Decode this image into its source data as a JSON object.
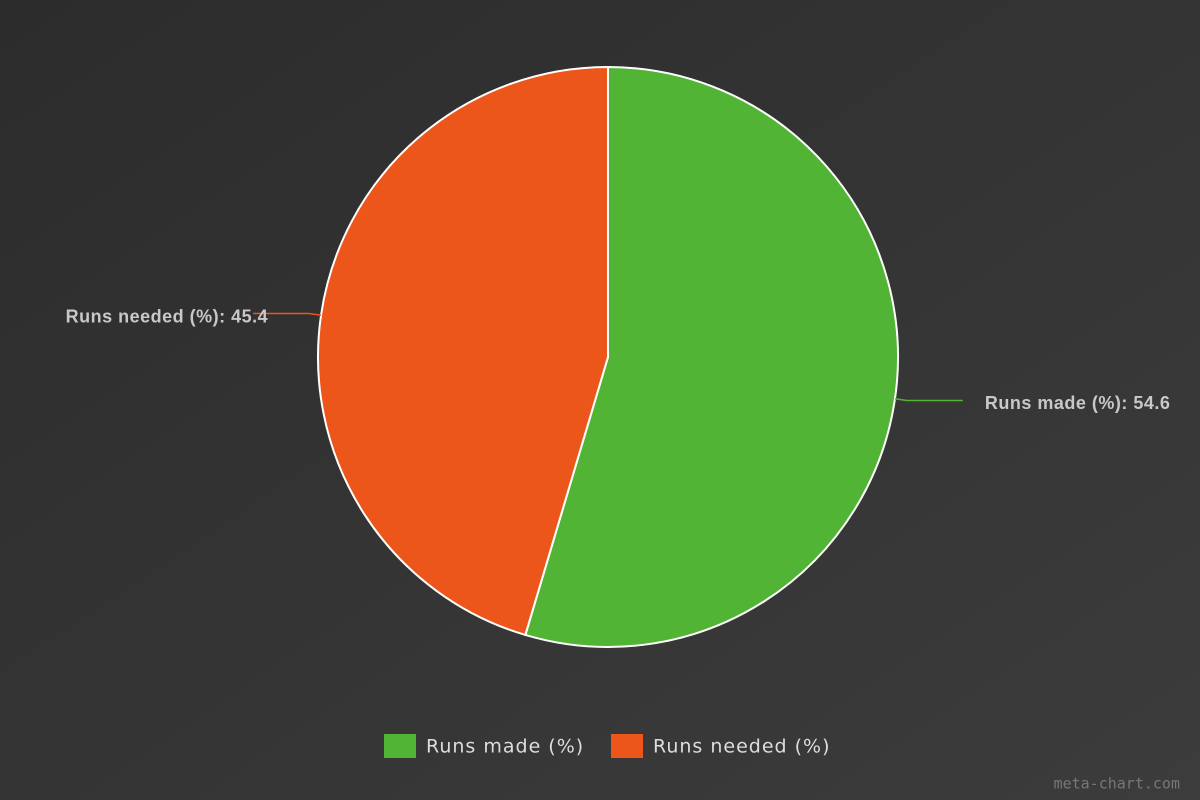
{
  "chart_data": {
    "type": "pie",
    "categories": [
      "Runs made (%)",
      "Runs needed (%)"
    ],
    "values": [
      54.6,
      45.4
    ],
    "value_labels": [
      "Runs made (%): 54.6",
      "Runs needed (%): 45.4"
    ],
    "colors": [
      "#52b434",
      "#ec561b"
    ],
    "legend": "bottom",
    "watermark": "meta-chart.com"
  }
}
